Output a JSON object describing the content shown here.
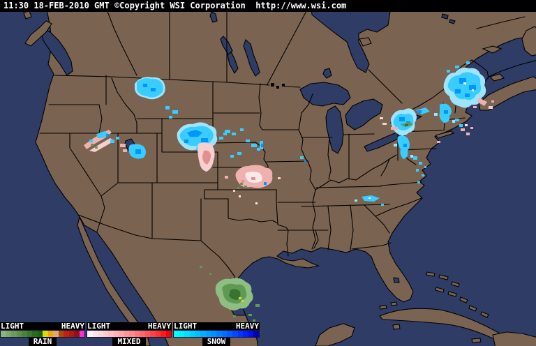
{
  "header": {
    "text": "11:30 18-FEB-2010 GMT ©Copyright WSI Corporation  http://www.wsi.com"
  },
  "map": {
    "description": "US national weather radar mosaic",
    "colors": {
      "land": "#7B6351",
      "water": "#2E3C66",
      "border": "#000000",
      "snow_light": "#9FE4FF",
      "snow_mid": "#38CCFF",
      "snow_heavy": "#0095FF",
      "snow_deep": "#0050E8",
      "snow_white": "#DFF8FF",
      "mixed_white": "#FBE9E9",
      "mixed_light": "#F6CFCF",
      "mixed_mid": "#EFB0B0",
      "mixed_deep": "#E28F8F",
      "rain_light": "#8FBE82",
      "rain_mid": "#5F9A54",
      "rain_dark": "#3A7231",
      "rain_yellow": "#D9D92A"
    }
  },
  "legend": {
    "light_label": "LIGHT",
    "heavy_label": "HEAVY",
    "bars": [
      {
        "label": "RAIN",
        "colors": [
          "#8CB37A",
          "#7CA76A",
          "#6C9B5A",
          "#5C8F4A",
          "#4C833A",
          "#3C772A",
          "#2C6B1C",
          "#206012",
          "#D6DE02",
          "#F0A802",
          "#DCAA7A",
          "#B44A02",
          "#C61C12",
          "#AE1A12",
          "#8E1410",
          "#FB2BD6"
        ]
      },
      {
        "label": "MIXED",
        "colors": [
          "#FFF3F3",
          "#FFE6E6",
          "#FFD9D9",
          "#FFCCCC",
          "#FFBFBF",
          "#FFB2B2",
          "#FFA5A5",
          "#FF9797",
          "#FF8888",
          "#FF7878",
          "#FF6868",
          "#FF5656",
          "#FF4444",
          "#FF3030",
          "#FF1A1A",
          "#F50202"
        ]
      },
      {
        "label": "SNOW",
        "colors": [
          "#02FFFF",
          "#02EFFF",
          "#02DFFF",
          "#02CFFF",
          "#02BFFF",
          "#02AFFF",
          "#029FFF",
          "#028FFF",
          "#027FFF",
          "#026FFF",
          "#025CFF",
          "#0248FF",
          "#0234FF",
          "#0220FF",
          "#0210E6",
          "#0202AE"
        ]
      }
    ]
  }
}
